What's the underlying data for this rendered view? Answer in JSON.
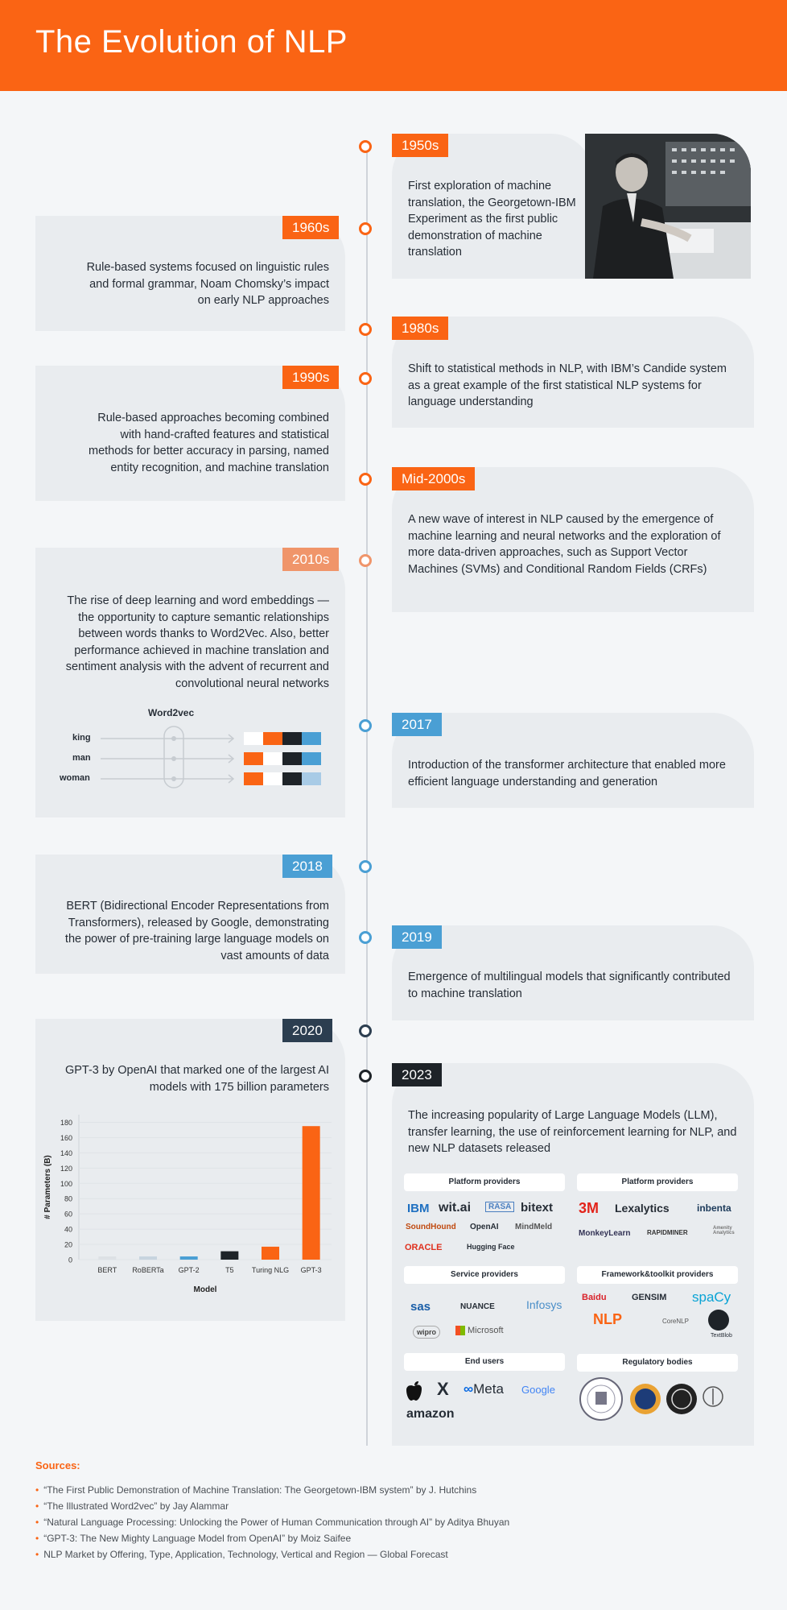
{
  "title": "The Evolution of NLP",
  "events": {
    "e1950": {
      "label": "1950s",
      "text": "First exploration of machine translation, the Georgetown-IBM Experiment as the first public demonstration of machine translation"
    },
    "e1960": {
      "label": "1960s",
      "text": "Rule-based systems focused on linguistic rules and formal grammar, Noam Chomsky’s impact on early NLP approaches"
    },
    "e1980": {
      "label": "1980s",
      "text": "Shift to statistical methods in NLP, with IBM’s Candide system as a great example of the first statistical NLP systems for language understanding"
    },
    "e1990": {
      "label": "1990s",
      "text": "Rule-based approaches becoming combined with hand-crafted features and statistical methods for better accuracy in parsing, named entity recognition, and machine translation"
    },
    "e2000": {
      "label": "Mid-2000s",
      "text": "A new wave of interest in NLP caused by the emergence of machine learning and neural networks and the exploration of more data-driven approaches, such as Support Vector Machines (SVMs) and Conditional Random Fields (CRFs)"
    },
    "e2010": {
      "label": "2010s",
      "text": "The rise of deep learning and word embeddings — the opportunity to capture semantic relationships between words thanks to Word2Vec. Also, better performance achieved in machine translation and sentiment analysis with the advent of recurrent and convolutional neural networks"
    },
    "e2017": {
      "label": "2017",
      "text": "Introduction of the transformer architecture that enabled more efficient language understanding and generation"
    },
    "e2018": {
      "label": "2018",
      "text": "BERT (Bidirectional Encoder Representations from Transformers), released by Google, demonstrating the power of pre-training large language models on vast amounts of data"
    },
    "e2019": {
      "label": "2019",
      "text": "Emergence of multilingual models that significantly contributed to machine translation"
    },
    "e2020": {
      "label": "2020",
      "text": "GPT-3 by OpenAI that marked one of the largest AI models with 175 billion parameters"
    },
    "e2023": {
      "label": "2023",
      "text": "The increasing popularity of Large Language Models (LLM), transfer learning, the use of reinforcement learning for NLP, and new NLP datasets released"
    }
  },
  "word2vec": {
    "title": "Word2vec",
    "words": [
      "king",
      "man",
      "woman"
    ]
  },
  "colors": {
    "orange": "#fa6414",
    "blue": "#4a9fd4",
    "dark": "#2c3e50",
    "light_blue": "#a8cbe6"
  },
  "chart_data": {
    "type": "bar",
    "categories": [
      "BERT",
      "RoBERTa",
      "GPT-2",
      "T5",
      "Turing NLG",
      "GPT-3"
    ],
    "values": [
      0.34,
      0.355,
      1.5,
      11,
      17,
      175
    ],
    "colors": [
      "#dde1e5",
      "#c7d4df",
      "#4a9fd4",
      "#1e2328",
      "#fa6414",
      "#fa6414"
    ],
    "xlabel": "Model",
    "ylabel": "# Parameters (B)",
    "yticks": [
      0,
      20,
      40,
      60,
      80,
      100,
      120,
      140,
      160,
      180
    ],
    "ylim": [
      0,
      190
    ]
  },
  "ecosystem": {
    "platform1": {
      "title": "Platform providers",
      "logos": [
        "IBM",
        "wit.ai",
        "RASA",
        "bitext",
        "SoundHound",
        "OpenAI",
        "MindMeld",
        "ORACLE",
        "Hugging Face"
      ]
    },
    "platform2": {
      "title": "Platform providers",
      "logos": [
        "3M",
        "Lexalytics",
        "inbenta",
        "MonkeyLearn",
        "RAPIDMINER",
        "Amenity Analytics"
      ]
    },
    "service": {
      "title": "Service providers",
      "logos": [
        "sas",
        "NUANCE",
        "Infosys",
        "wipro",
        "Microsoft"
      ]
    },
    "framework": {
      "title": "Framework&toolkit providers",
      "logos": [
        "Baidu",
        "GENSIM",
        "spaCy",
        "NLP",
        "CoreNLP",
        "TextBlob"
      ]
    },
    "endusers": {
      "title": "End users",
      "logos": [
        "",
        "X",
        "Meta",
        "Google",
        "amazon"
      ]
    },
    "regulatory": {
      "title": "Regulatory bodies"
    }
  },
  "sources": {
    "title": "Sources:",
    "items": [
      "“The First Public Demonstration of Machine Translation: The Georgetown-IBM system” by J. Hutchins",
      "“The Illustrated Word2vec” by Jay Alammar",
      "“Natural Language Processing: Unlocking the Power of Human Communication through AI” by Aditya Bhuyan",
      "“GPT-3: The New Mighty Language Model from OpenAI” by Moiz Saifee",
      "NLP Market by Offering, Type, Application, Technology, Vertical and Region — Global Forecast"
    ]
  }
}
